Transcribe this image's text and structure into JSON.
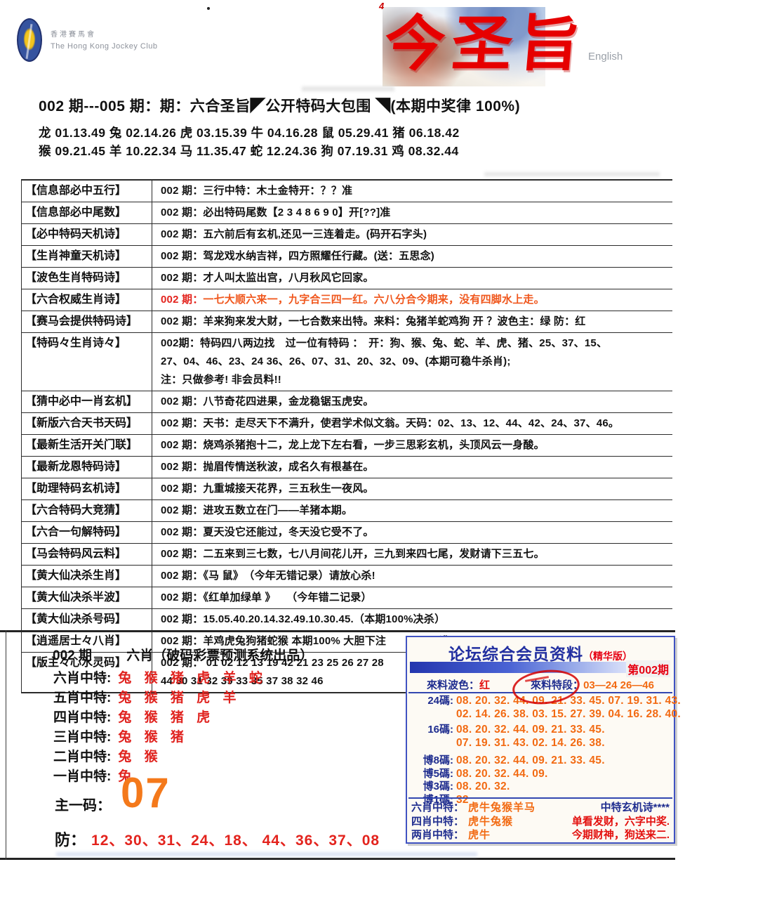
{
  "colors": {
    "red": "#e3231d",
    "orange": "#f26a12",
    "navy": "#1f2d8f",
    "box_border": "#4053c2",
    "calligraphy_red": "#e60000"
  },
  "logo": {
    "cn": "香港賽馬會",
    "en": "The Hong Kong Jockey Club"
  },
  "banner": {
    "title": "今圣旨",
    "english_link": "English",
    "corner_mark": "4"
  },
  "header": {
    "line": "002 期---005 期：期：六合圣旨◤公开特码大包围 ◥(本期中奖律 100%)"
  },
  "zodiac": {
    "line1": "龙 01.13.49 兔 02.14.26 虎 03.15.39 牛 04.16.28 鼠 05.29.41 猪 06.18.42",
    "line2": "猴 09.21.45 羊 10.22.34 马 11.35.47 蛇 12.24.36 狗 07.19.31 鸡 08.32.44"
  },
  "table": {
    "rows": [
      {
        "label": "【信息部必中五行】",
        "lines": [
          "002 期：三行中特：木土金特开：？？准"
        ]
      },
      {
        "label": "【信息部必中尾数】",
        "lines": [
          "002 期：必出特码尾数【2 3 4 8 6 9 0】开[??]准"
        ]
      },
      {
        "label": "【必中特码天机诗】",
        "lines": [
          "002 期：五六前后有玄机,还见一三连着走。(码开石字头)"
        ]
      },
      {
        "label": "【生肖神童天机诗】",
        "lines": [
          "002 期：驾龙戏水纳吉祥，四方照耀任行藏。(送：五思念)"
        ]
      },
      {
        "label": "【波色生肖特码诗】",
        "lines": [
          "002 期：才人叫太监出宫，八月秋风它回家。"
        ]
      },
      {
        "label": "【六合权威生肖诗】",
        "prefix": "002 期：",
        "rest": "一七大顺六来一，九字合三四一红。六八分合今期来，没有四脚水上走。"
      },
      {
        "label": "【赛马会提供特码诗】",
        "lines": [
          "002 期：羊来狗来发大财，一七合数来出特。来料：兔猪羊蛇鸡狗 开 ？波色主：绿 防：红"
        ]
      },
      {
        "label": "【特码々生肖诗々】",
        "lines": [
          "002期：特码四八两边找　过一位有特码 ：　开：狗、猴、兔、蛇、羊、虎、猪、25、37、15、",
          "27、04、46、23、24 36、26、07、31、20、32、09、(本期可稳牛杀肖);",
          "注：只做参考! 非会员料!!"
        ]
      },
      {
        "label": "【猜中必中一肖玄机】",
        "lines": [
          "002 期：八节奇花四进果，金龙稳锯玉虎安。"
        ]
      },
      {
        "label": "【新版六合天书天码】",
        "lines": [
          "002 期：天书：走尽天下不满升，使君学术似文翁。天码：02、13、12、44、42、24、37、46。"
        ]
      },
      {
        "label": "【最新生活开关门联】",
        "lines": [
          "002 期：烧鸡杀猪抱十二，龙上龙下左右看，一步三思彩玄机，头顶风云一身酸。"
        ]
      },
      {
        "label": "【最新龙恩特码诗】",
        "lines": [
          "002 期：抛眉传情送秋波，成名久有根基在。"
        ]
      },
      {
        "label": "【助理特码玄机诗】",
        "lines": [
          "002 期：九重城接天花界，三五秋生一夜风。"
        ]
      },
      {
        "label": "【六合特码大竞猜】",
        "lines": [
          "002 期：进攻五数立在门——羊猪本期。"
        ]
      },
      {
        "label": "【六合一句解特码】",
        "lines": [
          "002 期：夏天没它还能过，冬天没它受不了。"
        ]
      },
      {
        "label": "【马会特码风云料】",
        "lines": [
          "002 期：二五来到三七数，七八月间花儿开，三九到来四七尾，发财请下三五七。"
        ]
      },
      {
        "label": "【黄大仙决杀生肖】",
        "lines": [
          "002 期：《马 鼠》　（今年无错记录）请放心杀!"
        ]
      },
      {
        "label": "【黄大仙决杀半波】",
        "lines": [
          "002 期：《红单加绿单 》　　（今年错二记录）"
        ]
      },
      {
        "label": "【黄大仙决杀号码】",
        "lines": [
          "002 期：15.05.40.20.14.32.49.10.30.45.（本期100%决杀）"
        ]
      },
      {
        "label": "【逍遥居士々八肖】",
        "lines": [
          "002 期：羊鸡虎兔狗猪蛇猴 本期100% 大胆下注　　开？？准"
        ]
      },
      {
        "label": "【版主々心水灵码】",
        "lines": [
          "002 期：  01 02 12 13 19 42 21 23 25 26 27 28",
          "44 30 31 32 39 33 35 37 38 32 46"
        ]
      }
    ]
  },
  "bottom_left": {
    "period": "002 期",
    "title": "六肖（破码彩票预测系统出品）",
    "xiao_rows": [
      {
        "label": "六肖中特:",
        "values": "兔 猴 猪 虎 羊 蛇"
      },
      {
        "label": "五肖中特:",
        "values": "兔 猴 猪 虎 羊"
      },
      {
        "label": "四肖中特:",
        "values": "兔 猴 猪 虎"
      },
      {
        "label": "三肖中特:",
        "values": "兔 猴 猪"
      },
      {
        "label": "二肖中特:",
        "values": "兔 猴"
      },
      {
        "label": "一肖中特:",
        "values": "兔"
      }
    ],
    "main_code_label": "主一码：",
    "main_code_value": "07",
    "fang_label": "防：",
    "fang_values": "12、30、31、24、18、 44、36、37、08"
  },
  "member_box": {
    "title": "论坛综合会员资料",
    "title_suffix": "（精华版）",
    "period": "第002期",
    "bose_label": "來料波色：",
    "bose_value": "红",
    "teduan_label": "來料特段：",
    "teduan_value": "03—24 26—46",
    "code_rows": [
      {
        "label": "24碼:",
        "lines": [
          "08. 20. 32. 44. 09. 21. 33. 45. 07. 19. 31. 43.",
          "02. 14. 26. 38. 03. 15. 27. 39. 04. 16. 28. 40."
        ]
      },
      {
        "label": "16碼:",
        "lines": [
          "08. 20. 32. 44. 09. 21. 33. 45.",
          "07. 19. 31. 43. 02. 14. 26. 38."
        ]
      },
      {
        "label": "博8碼:",
        "lines": [
          "08. 20. 32. 44. 09. 21. 33. 45."
        ]
      },
      {
        "label": "博5碼:",
        "lines": [
          "08. 20. 32. 44. 09."
        ]
      },
      {
        "label": "博3碼:",
        "lines": [
          "08. 20. 32."
        ]
      },
      {
        "label": "博1碼:",
        "lines": [
          "32"
        ]
      }
    ],
    "zhong_rows": [
      {
        "label": "六肖中特：",
        "value": "虎牛兔猴羊马",
        "right": "中特玄机诗****",
        "right_style": "navy"
      },
      {
        "label": "四肖中特：",
        "value": "虎牛兔猴",
        "right": "单看发财，六字中奖.",
        "right_style": "redtxt"
      },
      {
        "label": "两肖中特：",
        "value": "虎牛",
        "right": "今期财神，狗送来二.",
        "right_style": "redtxt"
      }
    ]
  }
}
